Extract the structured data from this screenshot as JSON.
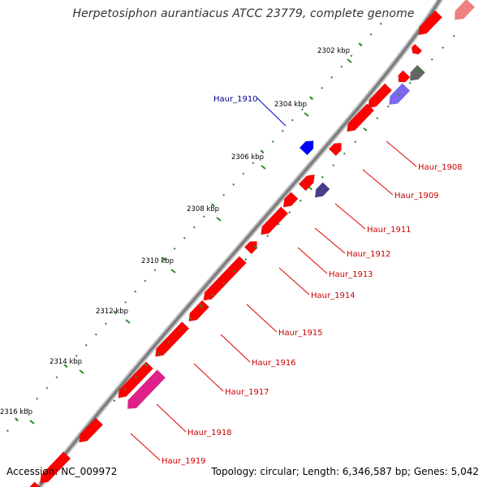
{
  "title": "Herpetosiphon aurantiacus ATCC 23779, complete genome",
  "footer": {
    "accession": "Accession: NC_009972",
    "summary": "Topology: circular; Length: 6,346,587 bp; Genes: 5,042"
  },
  "colors": {
    "backbone": "#808080",
    "forward_gene": "#ff0000",
    "reverse_gene": "#ff0000",
    "highlight_gene": "#0000ff",
    "label_red": "#cc0000",
    "label_blue": "#00008b",
    "tick_major": "#2e8b2e",
    "tick_minor": "#2e8b2e"
  },
  "scale_labels": [
    "2302 kbp",
    "2304 kbp",
    "2306 kbp",
    "2308 kbp",
    "2310 kbp",
    "2312 kbp",
    "2314 kbp",
    "2316 kbp"
  ],
  "gene_labels": [
    {
      "name": "Haur_1908",
      "color": "red"
    },
    {
      "name": "Haur_1909",
      "color": "red"
    },
    {
      "name": "Haur_1910",
      "color": "blue"
    },
    {
      "name": "Haur_1911",
      "color": "red"
    },
    {
      "name": "Haur_1912",
      "color": "red"
    },
    {
      "name": "Haur_1913",
      "color": "red"
    },
    {
      "name": "Haur_1914",
      "color": "red"
    },
    {
      "name": "Haur_1915",
      "color": "red"
    },
    {
      "name": "Haur_1916",
      "color": "red"
    },
    {
      "name": "Haur_1917",
      "color": "red"
    },
    {
      "name": "Haur_1918",
      "color": "red"
    },
    {
      "name": "Haur_1919",
      "color": "red"
    }
  ]
}
